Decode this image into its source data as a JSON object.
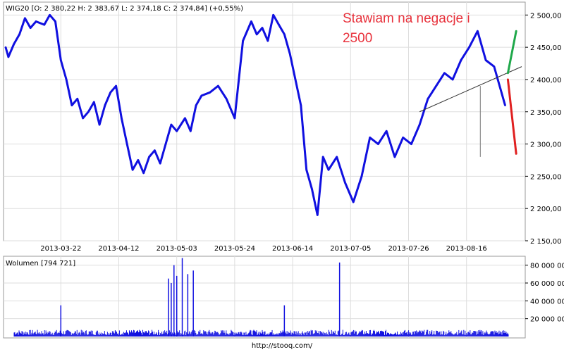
{
  "header": {
    "price_legend": "WIG20 [O: 2 380,22  H: 2 383,67  L: 2 374,18  C: 2 374,84] (+0,55%)",
    "volume_legend": "Wolumen [794 721]",
    "footer": "http://stooq.com/"
  },
  "annotation": {
    "line1": "Stawiam na negacje i",
    "line2": "2500"
  },
  "colors": {
    "series": "#1010e0",
    "up_projection": "#1fa84a",
    "down_projection": "#e02020",
    "trendline": "#333333",
    "grid": "#dddddd",
    "annotation": "#e8323c"
  },
  "chart_data": [
    {
      "type": "line",
      "name": "price",
      "ylim": [
        2150,
        2520
      ],
      "y_ticks": [
        "2 150,00",
        "2 200,00",
        "2 250,00",
        "2 300,00",
        "2 350,00",
        "2 400,00",
        "2 450,00",
        "2 500,00"
      ],
      "y_tick_values": [
        2150,
        2200,
        2250,
        2300,
        2350,
        2400,
        2450,
        2500
      ],
      "x_ticks": [
        "2013-03-22",
        "2013-04-12",
        "2013-05-03",
        "2013-05-24",
        "2013-06-14",
        "2013-07-05",
        "2013-07-26",
        "2013-08-16"
      ],
      "x_tick_dates": [
        "2013-03-22",
        "2013-04-12",
        "2013-05-03",
        "2013-05-24",
        "2013-06-14",
        "2013-07-05",
        "2013-07-26",
        "2013-08-16"
      ],
      "xlim": [
        "2013-03-02",
        "2013-09-05"
      ],
      "grid": true,
      "series": [
        {
          "x": [
            "2013-03-02",
            "2013-03-03",
            "2013-03-05",
            "2013-03-07",
            "2013-03-09",
            "2013-03-11",
            "2013-03-13",
            "2013-03-16",
            "2013-03-18",
            "2013-03-20",
            "2013-03-22",
            "2013-03-24",
            "2013-03-26",
            "2013-03-28",
            "2013-03-30",
            "2013-04-01",
            "2013-04-03",
            "2013-04-05",
            "2013-04-07",
            "2013-04-09",
            "2013-04-11",
            "2013-04-13",
            "2013-04-15",
            "2013-04-17",
            "2013-04-19",
            "2013-04-21",
            "2013-04-23",
            "2013-04-25",
            "2013-04-27",
            "2013-04-29",
            "2013-05-01",
            "2013-05-03",
            "2013-05-06",
            "2013-05-08",
            "2013-05-10",
            "2013-05-12",
            "2013-05-15",
            "2013-05-18",
            "2013-05-21",
            "2013-05-24",
            "2013-05-27",
            "2013-05-30",
            "2013-06-01",
            "2013-06-03",
            "2013-06-05",
            "2013-06-07",
            "2013-06-09",
            "2013-06-11",
            "2013-06-13",
            "2013-06-15",
            "2013-06-17",
            "2013-06-19",
            "2013-06-21",
            "2013-06-23",
            "2013-06-25",
            "2013-06-27",
            "2013-06-30",
            "2013-07-03",
            "2013-07-06",
            "2013-07-09",
            "2013-07-12",
            "2013-07-15",
            "2013-07-18",
            "2013-07-21",
            "2013-07-24",
            "2013-07-27",
            "2013-07-30",
            "2013-08-02",
            "2013-08-05",
            "2013-08-08",
            "2013-08-11",
            "2013-08-14",
            "2013-08-17",
            "2013-08-20",
            "2013-08-23",
            "2013-08-26",
            "2013-08-28",
            "2013-08-30"
          ],
          "values": [
            2450,
            2435,
            2455,
            2470,
            2495,
            2480,
            2490,
            2485,
            2500,
            2490,
            2430,
            2400,
            2360,
            2370,
            2340,
            2350,
            2365,
            2330,
            2360,
            2380,
            2390,
            2340,
            2300,
            2260,
            2275,
            2255,
            2280,
            2290,
            2270,
            2300,
            2330,
            2320,
            2340,
            2320,
            2360,
            2375,
            2380,
            2390,
            2370,
            2340,
            2460,
            2490,
            2470,
            2480,
            2460,
            2500,
            2485,
            2470,
            2440,
            2400,
            2360,
            2260,
            2230,
            2190,
            2280,
            2260,
            2280,
            2240,
            2210,
            2250,
            2310,
            2300,
            2320,
            2280,
            2310,
            2300,
            2330,
            2370,
            2390,
            2410,
            2400,
            2430,
            2450,
            2475,
            2430,
            2420,
            2390,
            2360
          ],
          "color": "#1010e0"
        }
      ],
      "projections": [
        {
          "x": [
            "2013-08-31",
            "2013-09-03"
          ],
          "values": [
            2410,
            2475
          ],
          "color": "#1fa84a"
        },
        {
          "x": [
            "2013-08-31",
            "2013-09-03"
          ],
          "values": [
            2400,
            2285
          ],
          "color": "#e02020"
        }
      ],
      "trendline": {
        "x": [
          "2013-07-30",
          "2013-09-05"
        ],
        "values": [
          2350,
          2420
        ]
      },
      "spike": {
        "x": "2013-08-21",
        "values": [
          2280,
          2390
        ]
      }
    },
    {
      "type": "bar",
      "name": "volume",
      "ylim": [
        0,
        90000000
      ],
      "y_ticks": [
        "20 000 000",
        "40 000 000",
        "60 000 000",
        "80 000 000"
      ],
      "y_tick_values": [
        20000000,
        40000000,
        60000000,
        80000000
      ],
      "spikes": [
        {
          "x": "2013-03-22",
          "value": 35000000
        },
        {
          "x": "2013-04-30",
          "value": 65000000
        },
        {
          "x": "2013-05-01",
          "value": 60000000
        },
        {
          "x": "2013-05-02",
          "value": 80000000
        },
        {
          "x": "2013-05-03",
          "value": 68000000
        },
        {
          "x": "2013-05-05",
          "value": 88000000
        },
        {
          "x": "2013-05-07",
          "value": 70000000
        },
        {
          "x": "2013-05-09",
          "value": 74000000
        },
        {
          "x": "2013-06-11",
          "value": 35000000
        },
        {
          "x": "2013-07-01",
          "value": 83000000
        }
      ],
      "base_level": 5000000,
      "color": "#1010e0"
    }
  ]
}
